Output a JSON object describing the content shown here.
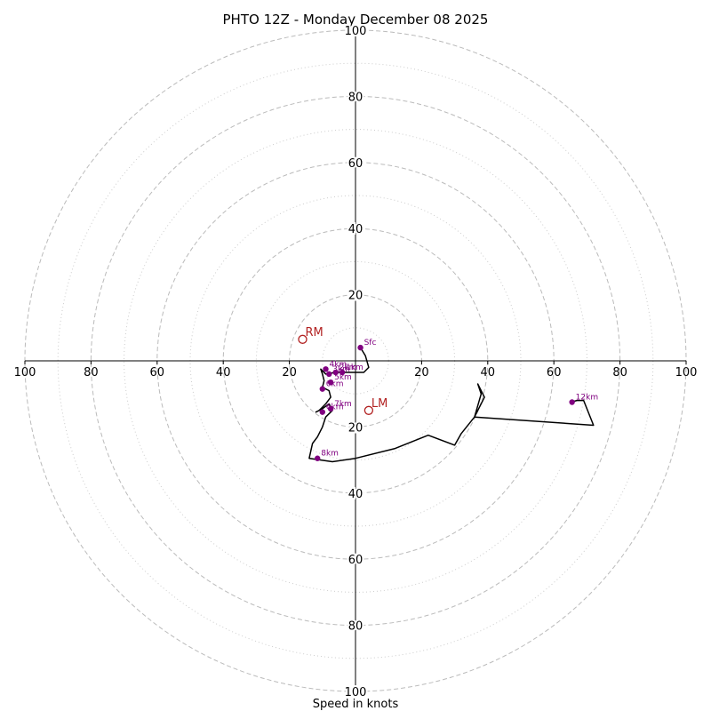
{
  "chart_data": {
    "type": "line",
    "title": "PHTO 12Z - Monday December 08 2025",
    "xlabel": "Speed in knots",
    "axis_max": 100,
    "x_tick_labels": [
      "100",
      "80",
      "60",
      "40",
      "20",
      "20",
      "40",
      "60",
      "80",
      "100"
    ],
    "y_tick_labels": [
      "100",
      "80",
      "60",
      "40",
      "20",
      "20",
      "40",
      "60",
      "80",
      "100"
    ],
    "rings": {
      "major": [
        20,
        40,
        60,
        80,
        100
      ],
      "minor": [
        10,
        30,
        50,
        70,
        90
      ]
    },
    "series": [
      {
        "u": [
          1.5,
          3,
          4,
          2.5,
          0,
          -3,
          -6,
          -9,
          -10.5,
          -10,
          -9.5,
          -10,
          -8,
          -7.5,
          -9,
          -10,
          -11,
          -12,
          -10,
          -8,
          -7,
          -9,
          -10,
          -11.5,
          -13,
          -14,
          -7,
          0,
          12,
          22,
          30,
          32,
          36,
          39,
          37,
          38,
          36,
          72,
          69,
          67,
          65
        ],
        "v": [
          4,
          1.5,
          -2,
          -3.5,
          -3.5,
          -3.5,
          -3.5,
          -4,
          -2.5,
          -4,
          -6,
          -8,
          -9,
          -11,
          -13,
          -14,
          -15,
          -15.5,
          -14.5,
          -13,
          -15,
          -17,
          -20,
          -23,
          -25,
          -29.5,
          -30.5,
          -29.5,
          -26.5,
          -22.5,
          -25.5,
          -22,
          -17,
          -11,
          -7,
          -10,
          -17,
          -19.5,
          -12,
          -12,
          -12.5
        ]
      }
    ],
    "points": [
      {
        "label": "Sfc",
        "u": 1.5,
        "v": 4
      },
      {
        "label": "1km",
        "u": -4,
        "v": -3.5
      },
      {
        "label": "2km",
        "u": -6,
        "v": -3.5
      },
      {
        "label": "3km",
        "u": -8,
        "v": -4
      },
      {
        "label": "4km",
        "u": -9,
        "v": -2.5
      },
      {
        "label": "5km",
        "u": -7.5,
        "v": -6.5
      },
      {
        "label": "6km",
        "u": -10,
        "v": -8.5
      },
      {
        "label": "6km",
        "u": -10,
        "v": -15.5
      },
      {
        "label": "7km",
        "u": -7.5,
        "v": -14.5
      },
      {
        "label": "8km",
        "u": -11.5,
        "v": -29.5
      },
      {
        "label": "12km",
        "u": 65.5,
        "v": -12.5
      }
    ],
    "storm_motion": [
      {
        "label": "RM",
        "u": -16,
        "v": 6.5
      },
      {
        "label": "LM",
        "u": 4,
        "v": -15
      }
    ],
    "colors": {
      "hodograph": "#000000",
      "height_points": "#800080",
      "storm_motion": "#b22222",
      "rings": "#bbbbbb"
    }
  }
}
